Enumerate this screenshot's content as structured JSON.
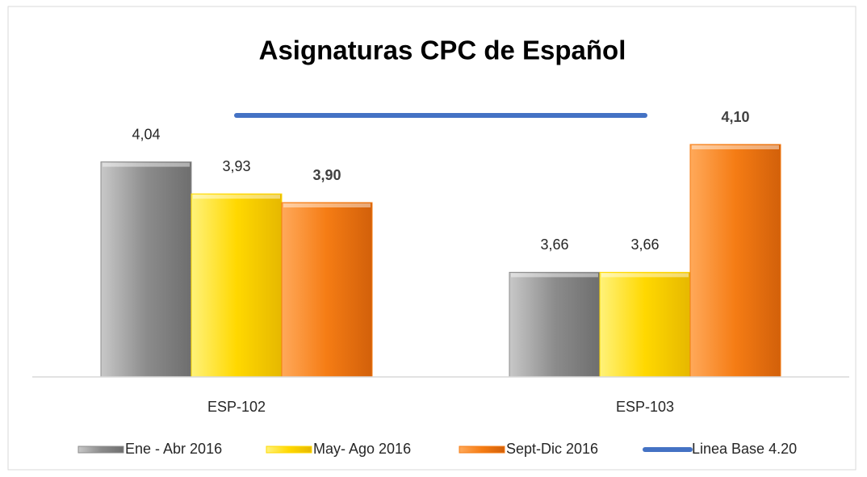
{
  "chart_data": {
    "type": "bar",
    "title": "Asignaturas CPC de Español",
    "categories": [
      "ESP-102",
      "ESP-103"
    ],
    "ylim": [
      3.3,
      4.3
    ],
    "legend": "bottom",
    "series": [
      {
        "name": "Ene - Abr 2016",
        "color": "#8c8c8c",
        "values": [
          4.04,
          3.66
        ],
        "value_labels": [
          "4,04",
          "3,66"
        ]
      },
      {
        "name": "May- Ago 2016",
        "color": "#ffd800",
        "values": [
          3.93,
          3.66
        ],
        "value_labels": [
          "3,93",
          "3,66"
        ]
      },
      {
        "name": "Sept-Dic  2016",
        "color": "#f57c14",
        "values": [
          3.9,
          4.1
        ],
        "value_labels": [
          "3,90",
          "4,10"
        ],
        "label_weight": "bold"
      },
      {
        "name": "Linea Base 4.20",
        "color": "#4472c4",
        "type": "line",
        "values": [
          4.2,
          4.2
        ]
      }
    ]
  }
}
